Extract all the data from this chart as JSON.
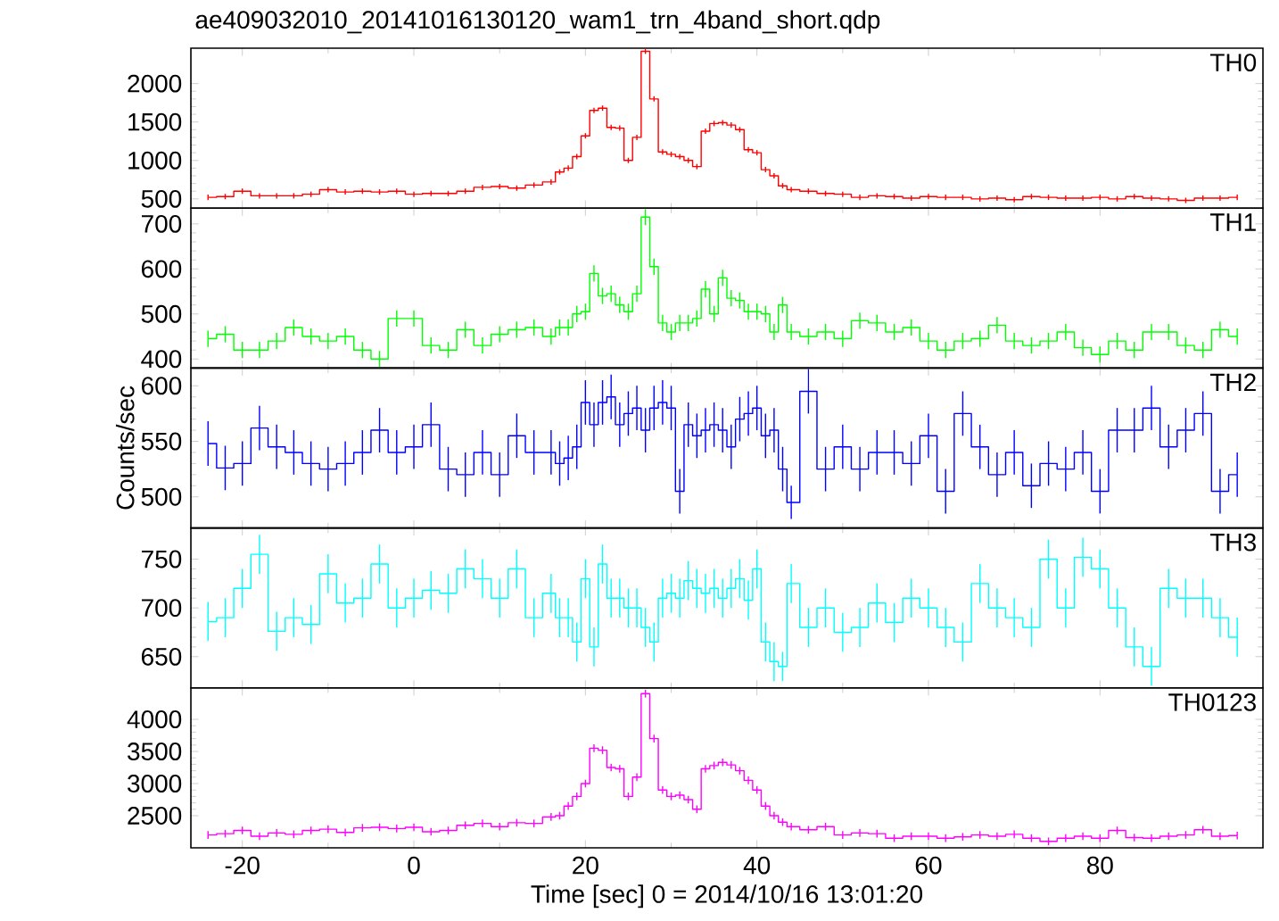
{
  "chart_data": [
    {
      "type": "step",
      "title": "ae409032010_20141016130120_wam1_trn_4band_short.qdp",
      "xlim": [
        -26,
        99
      ],
      "ylim": [
        380,
        2460
      ],
      "xticks": [
        -20,
        0,
        20,
        40,
        60,
        80
      ],
      "yticks": [
        500,
        1000,
        1500,
        2000
      ],
      "tick_labels": "y",
      "x": [
        -24,
        -22,
        -20,
        -18,
        -16,
        -14,
        -12,
        -10,
        -8,
        -6,
        -4,
        -2,
        0,
        2,
        4,
        6,
        8,
        10,
        12,
        14,
        16,
        17,
        18,
        19,
        20,
        21,
        22,
        23,
        24,
        25,
        26,
        27,
        28,
        29,
        30,
        31,
        32,
        33,
        34,
        35,
        36,
        37,
        38,
        39,
        40,
        41,
        42,
        43,
        44,
        46,
        48,
        50,
        52,
        54,
        56,
        58,
        60,
        62,
        64,
        66,
        68,
        70,
        72,
        74,
        76,
        78,
        80,
        82,
        84,
        86,
        88,
        90,
        92,
        94,
        96
      ],
      "series": [
        {
          "name": "TH0",
          "color": "#ff0000",
          "values": [
            520,
            530,
            600,
            540,
            540,
            540,
            560,
            620,
            590,
            600,
            590,
            600,
            560,
            570,
            570,
            600,
            650,
            660,
            640,
            680,
            720,
            850,
            900,
            1050,
            1320,
            1650,
            1680,
            1430,
            1420,
            1000,
            1300,
            2420,
            1800,
            1110,
            1080,
            1050,
            1000,
            920,
            1380,
            1480,
            1490,
            1460,
            1400,
            1140,
            1100,
            880,
            800,
            670,
            620,
            600,
            570,
            560,
            520,
            540,
            530,
            510,
            530,
            520,
            520,
            500,
            510,
            490,
            530,
            520,
            510,
            510,
            520,
            500,
            530,
            510,
            500,
            480,
            510,
            510,
            520
          ],
          "errors": [
            35,
            35,
            35,
            35,
            35,
            35,
            35,
            35,
            35,
            35,
            35,
            35,
            35,
            35,
            35,
            35,
            35,
            35,
            35,
            35,
            35,
            35,
            35,
            35,
            35,
            35,
            35,
            35,
            35,
            35,
            35,
            35,
            35,
            35,
            35,
            35,
            35,
            35,
            35,
            35,
            35,
            35,
            35,
            35,
            35,
            35,
            35,
            35,
            35,
            35,
            35,
            35,
            35,
            35,
            35,
            35,
            35,
            35,
            35,
            35,
            35,
            35,
            35,
            35,
            35,
            35,
            35,
            35,
            35,
            35,
            35,
            35,
            35,
            35,
            35
          ]
        }
      ]
    },
    {
      "type": "step",
      "xlim": [
        -26,
        99
      ],
      "ylim": [
        380,
        735
      ],
      "xticks": [
        -20,
        0,
        20,
        40,
        60,
        80
      ],
      "yticks": [
        400,
        500,
        600,
        700
      ],
      "tick_labels": "y",
      "x": [
        -24,
        -22,
        -20,
        -18,
        -16,
        -14,
        -12,
        -10,
        -8,
        -6,
        -4,
        -2,
        0,
        2,
        4,
        6,
        8,
        10,
        12,
        14,
        16,
        17,
        18,
        19,
        20,
        21,
        22,
        23,
        24,
        25,
        26,
        27,
        28,
        29,
        30,
        31,
        32,
        33,
        34,
        35,
        36,
        37,
        38,
        39,
        40,
        41,
        42,
        43,
        44,
        46,
        48,
        50,
        52,
        54,
        56,
        58,
        60,
        62,
        64,
        66,
        68,
        70,
        72,
        74,
        76,
        78,
        80,
        82,
        84,
        86,
        88,
        90,
        92,
        94,
        96
      ],
      "series": [
        {
          "name": "TH1",
          "color": "#00ff00",
          "values": [
            445,
            455,
            420,
            420,
            440,
            470,
            450,
            440,
            450,
            420,
            400,
            490,
            490,
            430,
            420,
            465,
            430,
            455,
            465,
            470,
            450,
            470,
            470,
            500,
            505,
            590,
            540,
            545,
            520,
            505,
            545,
            715,
            605,
            480,
            460,
            480,
            480,
            490,
            555,
            500,
            580,
            535,
            530,
            505,
            505,
            500,
            460,
            520,
            460,
            450,
            460,
            445,
            485,
            480,
            460,
            470,
            440,
            420,
            440,
            445,
            475,
            440,
            430,
            440,
            460,
            425,
            410,
            440,
            420,
            460,
            460,
            430,
            420,
            465,
            450
          ],
          "errors": [
            18,
            18,
            18,
            18,
            18,
            18,
            18,
            18,
            18,
            18,
            18,
            18,
            18,
            18,
            18,
            18,
            18,
            18,
            18,
            18,
            18,
            18,
            18,
            18,
            18,
            18,
            18,
            18,
            18,
            18,
            18,
            18,
            18,
            18,
            18,
            18,
            18,
            18,
            18,
            18,
            18,
            18,
            18,
            18,
            18,
            18,
            18,
            18,
            18,
            18,
            18,
            18,
            18,
            18,
            18,
            18,
            18,
            18,
            18,
            18,
            18,
            18,
            18,
            18,
            18,
            18,
            18,
            18,
            18,
            18,
            18,
            18,
            18,
            18,
            18
          ]
        }
      ]
    },
    {
      "type": "step",
      "ylabel": "Counts/sec",
      "xlim": [
        -26,
        99
      ],
      "ylim": [
        472,
        616
      ],
      "xticks": [
        -20,
        0,
        20,
        40,
        60,
        80
      ],
      "yticks": [
        500,
        550,
        600
      ],
      "tick_labels": "y",
      "x": [
        -24,
        -22,
        -20,
        -18,
        -16,
        -14,
        -12,
        -10,
        -8,
        -6,
        -4,
        -2,
        0,
        2,
        4,
        6,
        8,
        10,
        12,
        14,
        16,
        17,
        18,
        19,
        20,
        21,
        22,
        23,
        24,
        25,
        26,
        27,
        28,
        29,
        30,
        31,
        32,
        33,
        34,
        35,
        36,
        37,
        38,
        39,
        40,
        41,
        42,
        43,
        44,
        46,
        48,
        50,
        52,
        54,
        56,
        58,
        60,
        62,
        64,
        66,
        68,
        70,
        72,
        74,
        76,
        78,
        80,
        82,
        84,
        86,
        88,
        90,
        92,
        94,
        96
      ],
      "series": [
        {
          "name": "TH2",
          "color": "#0000ff",
          "values": [
            548,
            526,
            530,
            562,
            545,
            540,
            530,
            525,
            530,
            540,
            560,
            540,
            545,
            565,
            525,
            520,
            540,
            520,
            555,
            540,
            540,
            530,
            535,
            545,
            585,
            565,
            585,
            590,
            565,
            575,
            580,
            560,
            580,
            585,
            580,
            505,
            565,
            555,
            560,
            565,
            560,
            545,
            570,
            575,
            580,
            555,
            560,
            525,
            495,
            595,
            525,
            545,
            525,
            540,
            540,
            530,
            555,
            505,
            575,
            545,
            520,
            540,
            510,
            530,
            525,
            540,
            505,
            560,
            560,
            580,
            545,
            560,
            575,
            505,
            520
          ],
          "errors": [
            20,
            20,
            20,
            20,
            20,
            20,
            20,
            20,
            20,
            20,
            20,
            20,
            20,
            20,
            20,
            20,
            20,
            20,
            20,
            20,
            20,
            20,
            20,
            20,
            20,
            20,
            20,
            20,
            20,
            20,
            20,
            20,
            20,
            20,
            20,
            20,
            20,
            20,
            20,
            20,
            20,
            20,
            20,
            20,
            20,
            20,
            20,
            20,
            15,
            20,
            20,
            20,
            20,
            20,
            20,
            20,
            20,
            20,
            20,
            20,
            20,
            20,
            20,
            20,
            20,
            20,
            20,
            20,
            20,
            20,
            20,
            20,
            20,
            20,
            20
          ]
        }
      ]
    },
    {
      "type": "step",
      "xlim": [
        -26,
        99
      ],
      "ylim": [
        618,
        782
      ],
      "xticks": [
        -20,
        0,
        20,
        40,
        60,
        80
      ],
      "yticks": [
        650,
        700,
        750
      ],
      "tick_labels": "y",
      "x": [
        -24,
        -22,
        -20,
        -18,
        -16,
        -14,
        -12,
        -10,
        -8,
        -6,
        -4,
        -2,
        0,
        2,
        4,
        6,
        8,
        10,
        12,
        14,
        16,
        17,
        18,
        19,
        20,
        21,
        22,
        23,
        24,
        25,
        26,
        27,
        28,
        29,
        30,
        31,
        32,
        33,
        34,
        35,
        36,
        37,
        38,
        39,
        40,
        41,
        42,
        43,
        44,
        46,
        48,
        50,
        52,
        54,
        56,
        58,
        60,
        62,
        64,
        66,
        68,
        70,
        72,
        74,
        76,
        78,
        80,
        82,
        84,
        86,
        88,
        90,
        92,
        94,
        96
      ],
      "series": [
        {
          "name": "TH3",
          "color": "#00ffff",
          "values": [
            686,
            690,
            720,
            755,
            676,
            690,
            683,
            735,
            705,
            710,
            745,
            700,
            710,
            718,
            715,
            740,
            730,
            710,
            740,
            690,
            715,
            690,
            690,
            665,
            730,
            660,
            745,
            710,
            710,
            700,
            700,
            680,
            665,
            710,
            715,
            710,
            728,
            720,
            715,
            720,
            710,
            720,
            730,
            708,
            740,
            665,
            645,
            640,
            725,
            680,
            700,
            675,
            680,
            705,
            685,
            710,
            700,
            680,
            665,
            725,
            700,
            690,
            680,
            750,
            700,
            752,
            740,
            700,
            660,
            640,
            720,
            710,
            710,
            690,
            670
          ],
          "errors": [
            20,
            20,
            20,
            20,
            20,
            20,
            20,
            20,
            20,
            20,
            20,
            20,
            20,
            20,
            20,
            20,
            20,
            20,
            20,
            20,
            20,
            20,
            20,
            20,
            20,
            20,
            20,
            20,
            20,
            20,
            20,
            20,
            20,
            20,
            20,
            20,
            20,
            20,
            20,
            20,
            20,
            20,
            20,
            20,
            20,
            20,
            20,
            15,
            20,
            20,
            20,
            20,
            20,
            20,
            20,
            20,
            20,
            20,
            20,
            20,
            20,
            20,
            20,
            20,
            20,
            20,
            20,
            20,
            20,
            20,
            20,
            20,
            20,
            20,
            20
          ]
        }
      ]
    },
    {
      "type": "step",
      "xlabel": "Time [sec] 0 = 2014/10/16 13:01:20",
      "xlim": [
        -26,
        99
      ],
      "ylim": [
        2000,
        4490
      ],
      "xticks": [
        -20,
        0,
        20,
        40,
        60,
        80
      ],
      "yticks": [
        2500,
        3000,
        3500,
        4000
      ],
      "x": [
        -24,
        -22,
        -20,
        -18,
        -16,
        -14,
        -12,
        -10,
        -8,
        -6,
        -4,
        -2,
        0,
        2,
        4,
        6,
        8,
        10,
        12,
        14,
        16,
        17,
        18,
        19,
        20,
        21,
        22,
        23,
        24,
        25,
        26,
        27,
        28,
        29,
        30,
        31,
        32,
        33,
        34,
        35,
        36,
        37,
        38,
        39,
        40,
        41,
        42,
        43,
        44,
        46,
        48,
        50,
        52,
        54,
        56,
        58,
        60,
        62,
        64,
        66,
        68,
        70,
        72,
        74,
        76,
        78,
        80,
        82,
        84,
        86,
        88,
        90,
        92,
        94,
        96
      ],
      "series": [
        {
          "name": "TH0123",
          "color": "#ff00ff",
          "values": [
            2200,
            2220,
            2270,
            2180,
            2230,
            2210,
            2270,
            2290,
            2240,
            2310,
            2320,
            2300,
            2320,
            2250,
            2270,
            2350,
            2380,
            2330,
            2390,
            2380,
            2480,
            2500,
            2650,
            2800,
            3000,
            3550,
            3520,
            3250,
            3230,
            2800,
            3100,
            4400,
            3700,
            2900,
            2800,
            2820,
            2750,
            2600,
            3230,
            3280,
            3330,
            3290,
            3200,
            3050,
            2900,
            2650,
            2500,
            2400,
            2330,
            2280,
            2330,
            2200,
            2230,
            2220,
            2150,
            2180,
            2180,
            2150,
            2170,
            2200,
            2180,
            2210,
            2150,
            2100,
            2150,
            2180,
            2150,
            2270,
            2160,
            2150,
            2180,
            2200,
            2280,
            2180,
            2190
          ],
          "errors": [
            60,
            60,
            60,
            60,
            60,
            60,
            60,
            60,
            60,
            60,
            60,
            60,
            60,
            60,
            60,
            60,
            60,
            60,
            60,
            60,
            60,
            60,
            60,
            60,
            60,
            60,
            60,
            60,
            60,
            60,
            60,
            60,
            60,
            60,
            60,
            60,
            60,
            60,
            60,
            60,
            60,
            60,
            60,
            60,
            60,
            60,
            60,
            60,
            60,
            60,
            60,
            60,
            60,
            60,
            60,
            60,
            60,
            60,
            60,
            60,
            60,
            60,
            60,
            60,
            60,
            60,
            60,
            60,
            60,
            60,
            60,
            60,
            60,
            60,
            60
          ]
        }
      ]
    }
  ]
}
